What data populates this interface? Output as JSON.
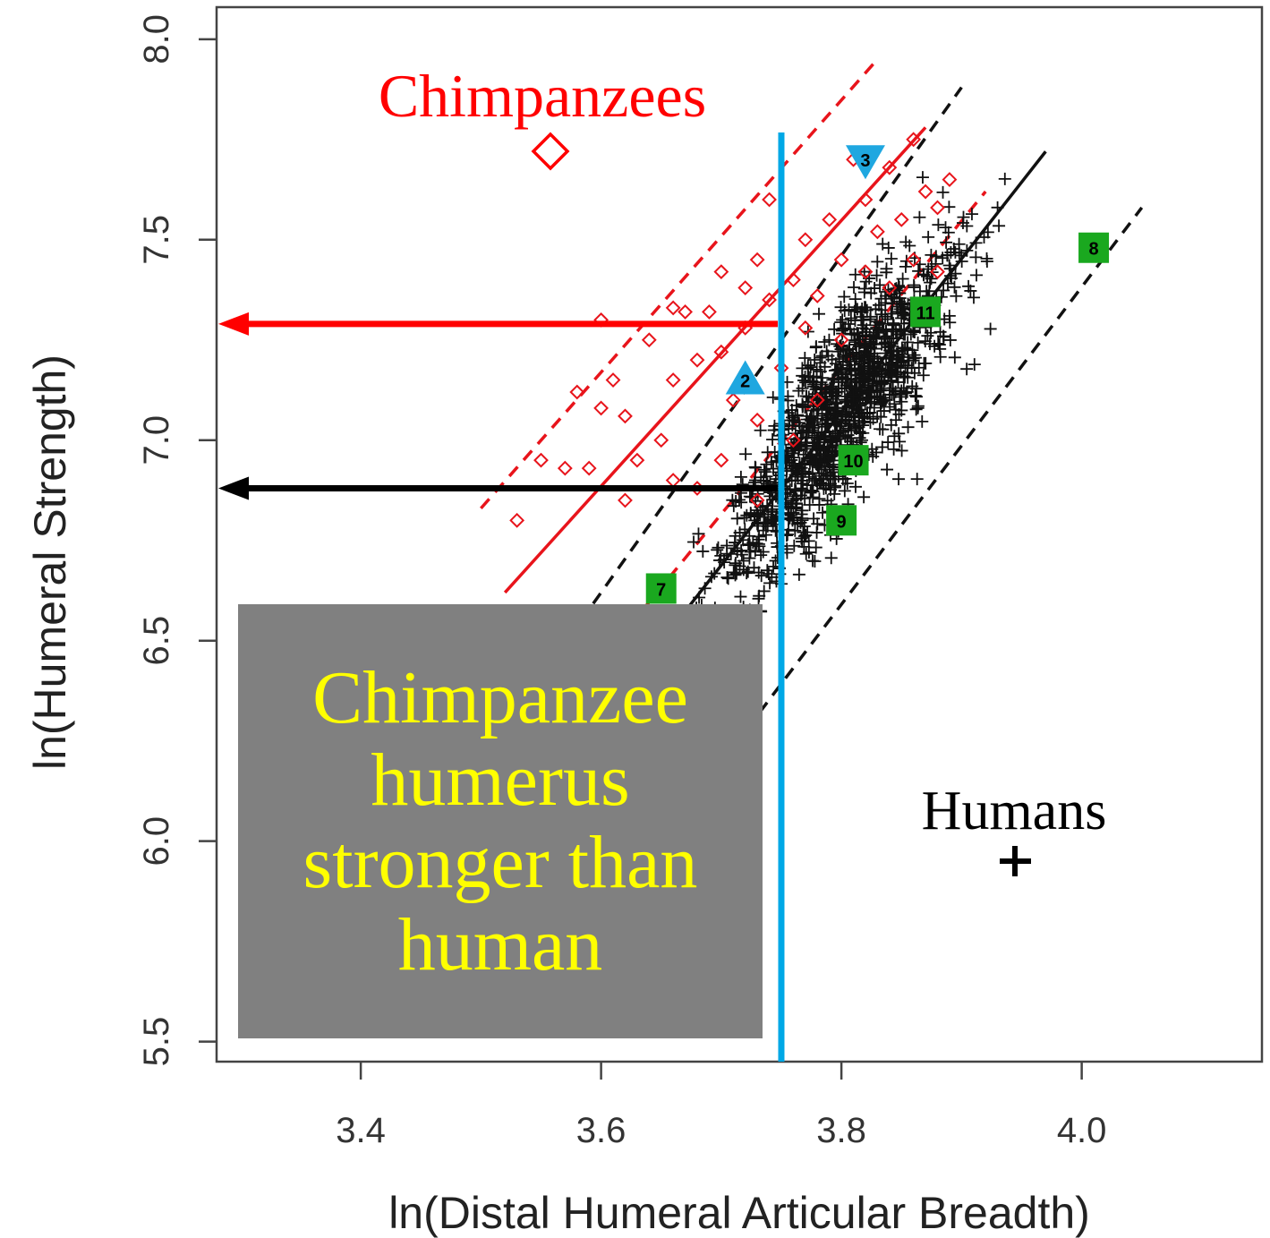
{
  "chart_data": {
    "type": "scatter",
    "xlabel": "ln(Distal Humeral Articular Breadth)",
    "ylabel": "ln(Humeral Strength)",
    "xlim": [
      3.28,
      4.15
    ],
    "ylim": [
      5.45,
      8.08
    ],
    "xticks": [
      "3.4",
      "3.6",
      "3.8",
      "4.0"
    ],
    "yticks": [
      "5.5",
      "6.0",
      "6.5",
      "7.0",
      "7.5",
      "8.0"
    ],
    "series": [
      {
        "name": "Chimpanzees",
        "marker": "open-diamond",
        "color": "#e8141b",
        "points": [
          [
            3.53,
            6.8
          ],
          [
            3.55,
            6.95
          ],
          [
            3.57,
            6.93
          ],
          [
            3.59,
            6.93
          ],
          [
            3.58,
            7.12
          ],
          [
            3.6,
            7.08
          ],
          [
            3.61,
            7.15
          ],
          [
            3.62,
            7.06
          ],
          [
            3.6,
            7.3
          ],
          [
            3.63,
            6.95
          ],
          [
            3.62,
            6.85
          ],
          [
            3.65,
            7.0
          ],
          [
            3.64,
            7.25
          ],
          [
            3.66,
            7.33
          ],
          [
            3.66,
            7.15
          ],
          [
            3.67,
            7.32
          ],
          [
            3.68,
            7.2
          ],
          [
            3.69,
            7.32
          ],
          [
            3.7,
            7.42
          ],
          [
            3.7,
            7.22
          ],
          [
            3.71,
            7.1
          ],
          [
            3.72,
            7.38
          ],
          [
            3.72,
            7.28
          ],
          [
            3.73,
            7.45
          ],
          [
            3.74,
            7.35
          ],
          [
            3.73,
            7.05
          ],
          [
            3.75,
            7.18
          ],
          [
            3.76,
            7.0
          ],
          [
            3.76,
            7.4
          ],
          [
            3.77,
            7.28
          ],
          [
            3.78,
            7.36
          ],
          [
            3.79,
            7.55
          ],
          [
            3.8,
            7.45
          ],
          [
            3.81,
            7.7
          ],
          [
            3.82,
            7.6
          ],
          [
            3.83,
            7.52
          ],
          [
            3.84,
            7.68
          ],
          [
            3.85,
            7.55
          ],
          [
            3.86,
            7.75
          ],
          [
            3.87,
            7.62
          ],
          [
            3.88,
            7.58
          ],
          [
            3.89,
            7.65
          ],
          [
            3.73,
            6.85
          ],
          [
            3.78,
            7.1
          ],
          [
            3.8,
            7.25
          ],
          [
            3.84,
            7.38
          ],
          [
            3.86,
            7.45
          ],
          [
            3.88,
            7.42
          ],
          [
            3.74,
            7.6
          ],
          [
            3.77,
            7.5
          ],
          [
            3.82,
            7.42
          ],
          [
            3.7,
            6.95
          ],
          [
            3.68,
            6.88
          ],
          [
            3.66,
            6.9
          ]
        ]
      },
      {
        "name": "Humans",
        "marker": "plus",
        "color": "#111111"
      }
    ],
    "fossils": [
      {
        "label": "2",
        "x": 3.72,
        "y": 7.15,
        "shape": "triangle",
        "color": "#1fa7e0"
      },
      {
        "label": "3",
        "x": 3.82,
        "y": 7.7,
        "shape": "triangle-down",
        "color": "#1fa7e0"
      },
      {
        "label": "7",
        "x": 3.65,
        "y": 6.63,
        "shape": "square",
        "color": "#1aa81f"
      },
      {
        "label": "8",
        "x": 4.01,
        "y": 7.48,
        "shape": "square",
        "color": "#1aa81f"
      },
      {
        "label": "9",
        "x": 3.8,
        "y": 6.8,
        "shape": "square",
        "color": "#1aa81f"
      },
      {
        "label": "10",
        "x": 3.81,
        "y": 6.95,
        "shape": "square",
        "color": "#1aa81f"
      },
      {
        "label": "11",
        "x": 3.87,
        "y": 7.32,
        "shape": "square",
        "color": "#1aa81f"
      }
    ],
    "reference_x": 3.75,
    "arrows": [
      {
        "y": 7.29,
        "color": "#ff0000"
      },
      {
        "y": 6.88,
        "color": "#000000"
      }
    ],
    "colors": {
      "chimp": "#e8141b",
      "human": "#111111",
      "reference_line": "#00a8e6",
      "fossil_triangle": "#1fa7e0",
      "fossil_square": "#1aa81f"
    }
  },
  "annotations": {
    "chimp_legend": "Chimpanzees",
    "human_legend": "Humans",
    "callout": "Chimpanzee humerus stronger than human"
  }
}
